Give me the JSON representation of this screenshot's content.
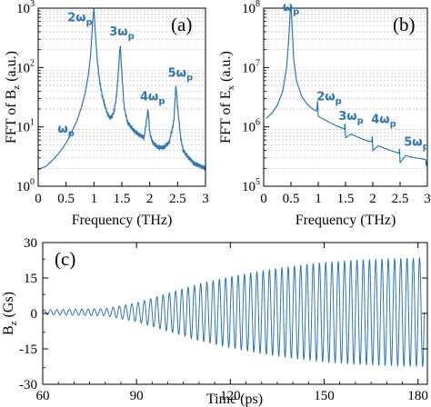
{
  "colors": {
    "line": "#2e75b6",
    "annotation": "#2e75b6",
    "axes": "#000000",
    "grid": "#bdbdbd"
  },
  "chart_data": [
    {
      "panel": "(a)",
      "type": "line",
      "xlabel": "Frequency (THz)",
      "ylabel": "FFT of B",
      "ylabel_sub": "z",
      "ylabel_suffix": " (a.u.)",
      "xlim": [
        0,
        3
      ],
      "ylim": [
        1,
        1000
      ],
      "yscale": "log",
      "grid": "horizontal minor dashed",
      "xticks": [
        "0",
        "0.5",
        "1",
        "1.5",
        "2",
        "2.5",
        "3"
      ],
      "yticks": [
        {
          "base": "10",
          "exp": "0"
        },
        {
          "base": "10",
          "exp": "1"
        },
        {
          "base": "10",
          "exp": "2"
        },
        {
          "base": "10",
          "exp": "3"
        }
      ],
      "series": [
        {
          "baseline": [
            [
              0,
              1.9
            ],
            [
              0.15,
              2.2
            ],
            [
              0.3,
              3
            ],
            [
              0.45,
              4.5
            ],
            [
              0.55,
              6.5
            ],
            [
              0.62,
              9
            ],
            [
              0.7,
              13
            ],
            [
              0.78,
              22
            ],
            [
              0.85,
              40
            ],
            [
              0.9,
              75
            ],
            [
              0.94,
              160
            ],
            [
              0.98,
              650
            ],
            [
              1.0,
              1000
            ],
            [
              1.02,
              450
            ],
            [
              1.06,
              130
            ],
            [
              1.1,
              60
            ],
            [
              1.15,
              33
            ],
            [
              1.2,
              22
            ],
            [
              1.25,
              16
            ],
            [
              1.3,
              14
            ],
            [
              1.35,
              17
            ],
            [
              1.4,
              30
            ],
            [
              1.44,
              90
            ],
            [
              1.47,
              250
            ],
            [
              1.5,
              80
            ],
            [
              1.54,
              22
            ],
            [
              1.6,
              12
            ],
            [
              1.7,
              9
            ],
            [
              1.8,
              7.5
            ],
            [
              1.9,
              6.5
            ],
            [
              1.97,
              20
            ],
            [
              2.0,
              8
            ],
            [
              2.05,
              5.5
            ],
            [
              2.15,
              4.5
            ],
            [
              2.25,
              4.5
            ],
            [
              2.35,
              5.5
            ],
            [
              2.43,
              12
            ],
            [
              2.47,
              50
            ],
            [
              2.5,
              22
            ],
            [
              2.55,
              7
            ],
            [
              2.6,
              4
            ],
            [
              2.7,
              3
            ],
            [
              2.8,
              2.4
            ],
            [
              2.9,
              2.2
            ],
            [
              3.0,
              2
            ]
          ],
          "noise": 0.1
        }
      ],
      "annotations": [
        {
          "x": 0.5,
          "y": 8,
          "base": "ω",
          "sub": "p",
          "prefix": ""
        },
        {
          "x": 0.75,
          "y": 600,
          "base": "ω",
          "sub": "p",
          "prefix": "2"
        },
        {
          "x": 1.5,
          "y": 350,
          "base": "ω",
          "sub": "p",
          "prefix": "3"
        },
        {
          "x": 2.05,
          "y": 28,
          "base": "ω",
          "sub": "p",
          "prefix": "4"
        },
        {
          "x": 2.55,
          "y": 70,
          "base": "ω",
          "sub": "p",
          "prefix": "5"
        }
      ]
    },
    {
      "panel": "(b)",
      "type": "line",
      "xlabel": "Frequency (THz)",
      "ylabel": "FFT of E",
      "ylabel_sub": "x",
      "ylabel_suffix": " (a.u.)",
      "xlim": [
        0,
        3
      ],
      "ylim": [
        100000,
        100000000
      ],
      "yscale": "log",
      "grid": "horizontal minor dashed",
      "xticks": [
        "0",
        "0.5",
        "1",
        "1.5",
        "2",
        "2.5",
        "3"
      ],
      "yticks": [
        {
          "base": "10",
          "exp": "5"
        },
        {
          "base": "10",
          "exp": "6"
        },
        {
          "base": "10",
          "exp": "7"
        },
        {
          "base": "10",
          "exp": "8"
        }
      ],
      "series": [
        {
          "baseline": [
            [
              0.05,
              1400000
            ],
            [
              0.15,
              1700000
            ],
            [
              0.25,
              2300000
            ],
            [
              0.35,
              4000000
            ],
            [
              0.42,
              10000000
            ],
            [
              0.46,
              30000000
            ],
            [
              0.49,
              110000000
            ],
            [
              0.5,
              120000000
            ],
            [
              0.52,
              50000000
            ],
            [
              0.55,
              14000000
            ],
            [
              0.6,
              6000000
            ],
            [
              0.7,
              3200000
            ],
            [
              0.8,
              2400000
            ],
            [
              0.9,
              2000000
            ],
            [
              0.97,
              1850000
            ],
            [
              0.99,
              2700000
            ],
            [
              1.0,
              1500000
            ],
            [
              1.1,
              1350000
            ],
            [
              1.2,
              1200000
            ],
            [
              1.3,
              1080000
            ],
            [
              1.4,
              980000
            ],
            [
              1.48,
              920000
            ],
            [
              1.49,
              1200000
            ],
            [
              1.5,
              650000
            ],
            [
              1.6,
              760000
            ],
            [
              1.7,
              690000
            ],
            [
              1.8,
              630000
            ],
            [
              1.9,
              580000
            ],
            [
              1.98,
              560000
            ],
            [
              1.99,
              720000
            ],
            [
              2.0,
              400000
            ],
            [
              2.1,
              480000
            ],
            [
              2.2,
              440000
            ],
            [
              2.3,
              410000
            ],
            [
              2.4,
              380000
            ],
            [
              2.48,
              360000
            ],
            [
              2.49,
              430000
            ],
            [
              2.5,
              250000
            ],
            [
              2.6,
              330000
            ],
            [
              2.7,
              310000
            ],
            [
              2.8,
              300000
            ],
            [
              2.9,
              290000
            ],
            [
              2.97,
              280000
            ],
            [
              2.98,
              220000
            ],
            [
              3.0,
              270000
            ]
          ],
          "noise": 0
        }
      ],
      "annotations": [
        {
          "x": 0.5,
          "y": 90000000,
          "base": "ω",
          "sub": "p",
          "prefix": ""
        },
        {
          "x": 1.2,
          "y": 2800000,
          "base": "ω",
          "sub": "p",
          "prefix": "2"
        },
        {
          "x": 1.6,
          "y": 1300000,
          "base": "ω",
          "sub": "p",
          "prefix": "3"
        },
        {
          "x": 2.2,
          "y": 1150000,
          "base": "ω",
          "sub": "p",
          "prefix": "4"
        },
        {
          "x": 2.8,
          "y": 480000,
          "base": "ω",
          "sub": "p",
          "prefix": "5"
        }
      ]
    },
    {
      "panel": "(c)",
      "type": "line",
      "xlabel": "Time (ps)",
      "ylabel": "B",
      "ylabel_sub": "z",
      "ylabel_suffix": " (Gs)",
      "xlim": [
        60,
        183
      ],
      "ylim": [
        -30,
        30
      ],
      "grid": "none",
      "xticks": [
        "60",
        "90",
        "120",
        "150",
        "180"
      ],
      "yticks": [
        "-30",
        "-15",
        "0",
        "15",
        "30"
      ],
      "yminor": [
        "-23",
        "-8",
        "8",
        "23"
      ],
      "series": [
        {
          "signal": "oscillation",
          "frequency_THz": 0.5,
          "baseline_offset": 0.5,
          "envelope": [
            [
              60,
              1
            ],
            [
              80,
              1.5
            ],
            [
              90,
              4
            ],
            [
              100,
              8
            ],
            [
              110,
              12
            ],
            [
              120,
              15
            ],
            [
              130,
              17.5
            ],
            [
              140,
              19.5
            ],
            [
              150,
              21
            ],
            [
              160,
              22
            ],
            [
              170,
              22.5
            ],
            [
              182,
              23
            ]
          ]
        }
      ]
    }
  ]
}
